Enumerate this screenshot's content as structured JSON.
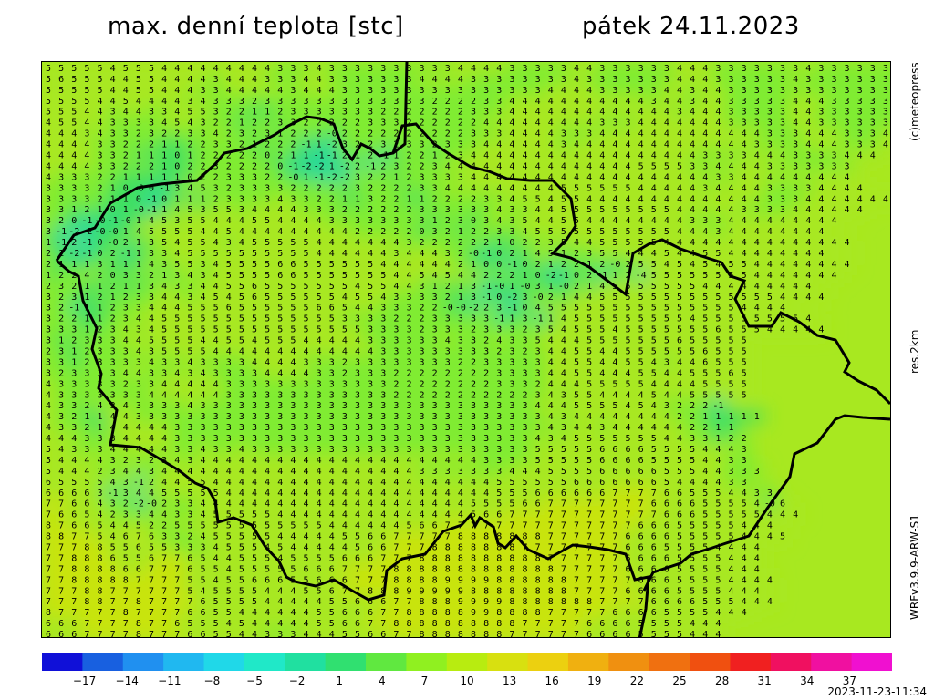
{
  "header": {
    "title_left": "max. denní teplota [stc]",
    "title_right": "pátek 24.11.2023"
  },
  "side_labels": {
    "copyright": "(c)meteopress",
    "resolution": "res.2km",
    "model": "WRFv3.9.9-ARW-S1"
  },
  "footer": {
    "timestamp": "2023-11-23-11:34"
  },
  "colorbar": {
    "tick_labels": [
      "-17",
      "-14",
      "-11",
      "-8",
      "-5",
      "-2",
      "1",
      "4",
      "7",
      "10",
      "13",
      "16",
      "19",
      "22",
      "25",
      "28",
      "31",
      "34",
      "37"
    ],
    "range": [
      -20,
      40
    ],
    "colors": [
      "#1010d8",
      "#1860e0",
      "#2090f0",
      "#20b8f0",
      "#20d8e8",
      "#20e8c8",
      "#20e0a0",
      "#30e070",
      "#60e840",
      "#90f020",
      "#b8ec10",
      "#d8e010",
      "#ecd010",
      "#f0b010",
      "#f09010",
      "#f07010",
      "#f05010",
      "#f02020",
      "#f01060",
      "#f010a0",
      "#f010d0"
    ]
  },
  "map": {
    "grid_cols": 66,
    "grid_rows": 53,
    "values": [
      "5555545554444444443334333333333344443333344333333444333333343333333",
      "5655544554444344433344333333344443333333343333333444333333433333333",
      "5555544554443344444344433333333333333334444333334434433333333333333",
      "5555445444434333233333333333332222334444444444434434433333444333333",
      "5554434433455322112333333322222223334444444444444344433333443333333",
      "4554433334543221223322222333222222444444444333444444433333443333333",
      "4443433232233423231222-0222222222233344443334444444444444333444333444",
      "44443322211223321222-11-2322323323334444443444444444444443333444333444",
      "444433211101222220211-1-1212-112212344444444444444444433334443333444",
      "4444332221022322220-1-2-21-22-12322344444444444444455553344443333333",
      "4333221111102233322-01-1-2-2322123333444444444444444444433444444444",
      "3333210-00-1345323333222223222233444444444555555444443444433334444",
      "33332110-10111233334332211322112222334554554444444444444433344444444",
      "3312101-0-11453553444433322222233333343344555555555444443333444444",
      "320-1-0-1-01453554445544443333333312303435445544444444333444444444",
      "3-1-2-2-0-01455554454444444442222203212233455555555555444344444444",
      "1-12-10-0213545543455555444444432222221022354455555444444444444444",
      "21-2-102-113345555555555444444344432-0-102145123554445445544444444",
      "211131114355345555665555554444442100-10212212-0255454545544444444",
      "122420332134345555665555555445454422210-2-102-112-4555555554444444",
      "2321121134334455655555554554431213-1-01-031-02145555555444444444",
      "3231212334434545655555545543333213-10-23-02144555555555555554444",
      "32-11123344455565555556654433322-0-0-223-1045555555555555554444",
      "32211234455555555555555333322233333-113-1145555555554555555554",
      "3331234345555555555555555333323332333235455545555555655544444",
      "3123334455554455455544444333333433243354445555555655555",
      "2312333435555444444444444433333333323234455445555556555",
      "3312333343343333444433323333333322333334455445543446555",
      "3233334433434333344443323332222222233334455444554455565",
      "4333332334444433333333333332222222233324445555544445555",
      "4333333344444433333333333332222222222234355444454455555",
      "4332434333343333333333333333333333333344455554543222-1",
      "43211443333333333333333333333333333333343444444442211111",
      "433214444433333333333333333333333333333434434444442211",
      "4443334444333333333333333333333333333343455555554433122",
      "5433344444334334333333333333333333333355555666655554443",
      "5444432323434444444444444444444444333355555666655554433",
      "54442344344444444444444444444333333344455556666655544333",
      "6555543-124455444444444444444444444455555566666665444433",
      "66663-1344555554444444444444444444445556666667777665554433",
      "7766432-2-023344444444444444444444455556677777777666655554-06",
      "76654233443345555544444444444444456677777777777766655555444",
      "876654452255555555555544444456677777777777777766655555444",
      "8877546763324555554444455667777788888887777776666555554445",
      "77788556553334555454444456677788888887777777766655554444",
      "77888655677654455545555666777888888888877777766665555444",
      "77888866777655455555666777788888888888887777766665555444",
      "778888877775545566655666777888899998888887777766655554444",
      "77788777777545555444556778889999988888888777766665555444",
      "777887787777655554444455666778889999888888877776666555444",
      "8777778777766554444445566677888889988887777766665555444",
      "66677778776555454444455667788888888887777766665555444",
      "66677778777665544333444556677888888877777766665555444"
    ]
  }
}
